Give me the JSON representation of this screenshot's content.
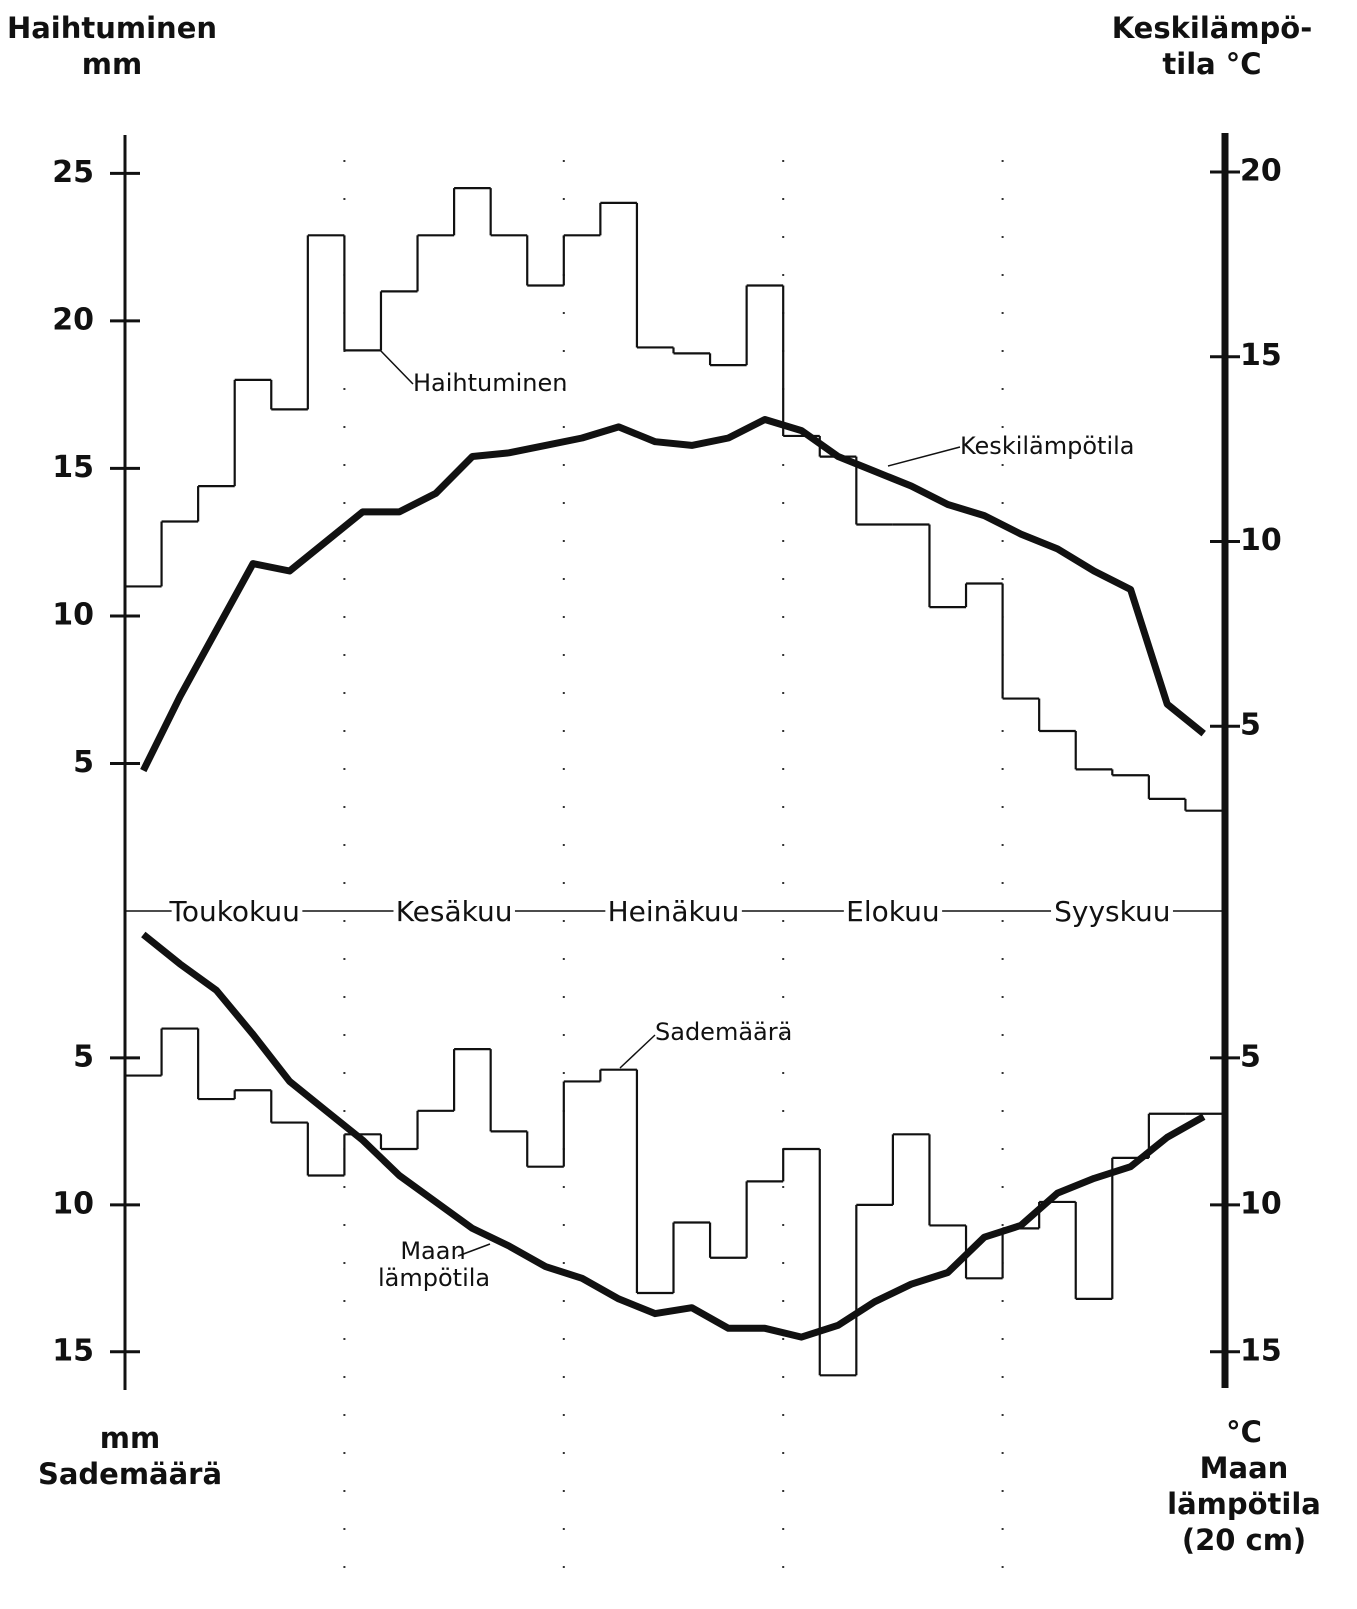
{
  "chart_data": {
    "type": "climate-diagram",
    "months": [
      "Toukokuu",
      "Kesäkuu",
      "Heinäkuu",
      "Elokuu",
      "Syyskuu"
    ],
    "upper": {
      "y_title": [
        "Haihtuminen",
        "mm"
      ],
      "ylim": [
        0,
        26.3
      ],
      "yticks": [
        5,
        10,
        15,
        20,
        25
      ],
      "y2_title": [
        "Keskilämpö-",
        "tila °C"
      ],
      "y2lim": [
        0,
        21
      ],
      "y2ticks": [
        5,
        10,
        15,
        20
      ]
    },
    "lower": {
      "y_title": [
        "mm",
        "Sademäärä"
      ],
      "ylim": [
        0,
        16.3
      ],
      "yticks": [
        5,
        10,
        15
      ],
      "y2_title": [
        "°C",
        "Maan",
        "lämpötila",
        "(20 cm)"
      ],
      "y2lim": [
        0,
        16.3
      ],
      "y2ticks": [
        5,
        10,
        15
      ]
    },
    "series": [
      {
        "name": "Haihtuminen",
        "panel": "upper",
        "axis": "y",
        "style": "step",
        "color": "#111111",
        "values": [
          11,
          13.2,
          14.4,
          18,
          17,
          22.9,
          19,
          21,
          22.9,
          24.5,
          22.9,
          21.2,
          22.9,
          24,
          19.1,
          18.9,
          18.5,
          21.2,
          16.1,
          15.4,
          13.1,
          13.1,
          10.3,
          11.1,
          7.2,
          6.1,
          4.8,
          4.6,
          3.8,
          3.4
        ]
      },
      {
        "name": "Keskilämpötila",
        "panel": "upper",
        "axis": "y2",
        "style": "line",
        "color": "#111111",
        "values": [
          3.8,
          5.8,
          7.6,
          9.4,
          9.2,
          10,
          10.8,
          10.8,
          11.3,
          12.3,
          12.4,
          12.6,
          12.8,
          13.1,
          12.7,
          12.6,
          12.8,
          13.3,
          13,
          12.3,
          11.9,
          11.5,
          11,
          10.7,
          10.2,
          9.8,
          9.2,
          8.7,
          5.6,
          4.8
        ]
      },
      {
        "name": "Sademäärä",
        "panel": "lower",
        "axis": "y",
        "style": "step",
        "color": "#111111",
        "values": [
          5.6,
          4,
          6.4,
          6.1,
          7.2,
          9,
          7.6,
          8.1,
          6.8,
          4.7,
          7.5,
          8.7,
          5.8,
          5.4,
          13,
          10.6,
          11.8,
          9.2,
          8.1,
          15.8,
          10,
          7.6,
          10.7,
          12.5,
          10.8,
          9.9,
          13.2,
          8.4,
          6.9,
          6.9
        ]
      },
      {
        "name": "Maan lämpötila",
        "panel": "lower",
        "axis": "y2",
        "style": "line",
        "color": "#111111",
        "values": [
          0.8,
          1.8,
          2.7,
          4.2,
          5.8,
          6.8,
          7.8,
          9,
          9.9,
          10.8,
          11.4,
          12.1,
          12.5,
          13.2,
          13.7,
          13.5,
          14.2,
          14.2,
          14.5,
          14.1,
          13.3,
          12.7,
          12.3,
          11.1,
          10.7,
          9.6,
          9.1,
          8.7,
          7.7,
          7
        ]
      }
    ]
  }
}
